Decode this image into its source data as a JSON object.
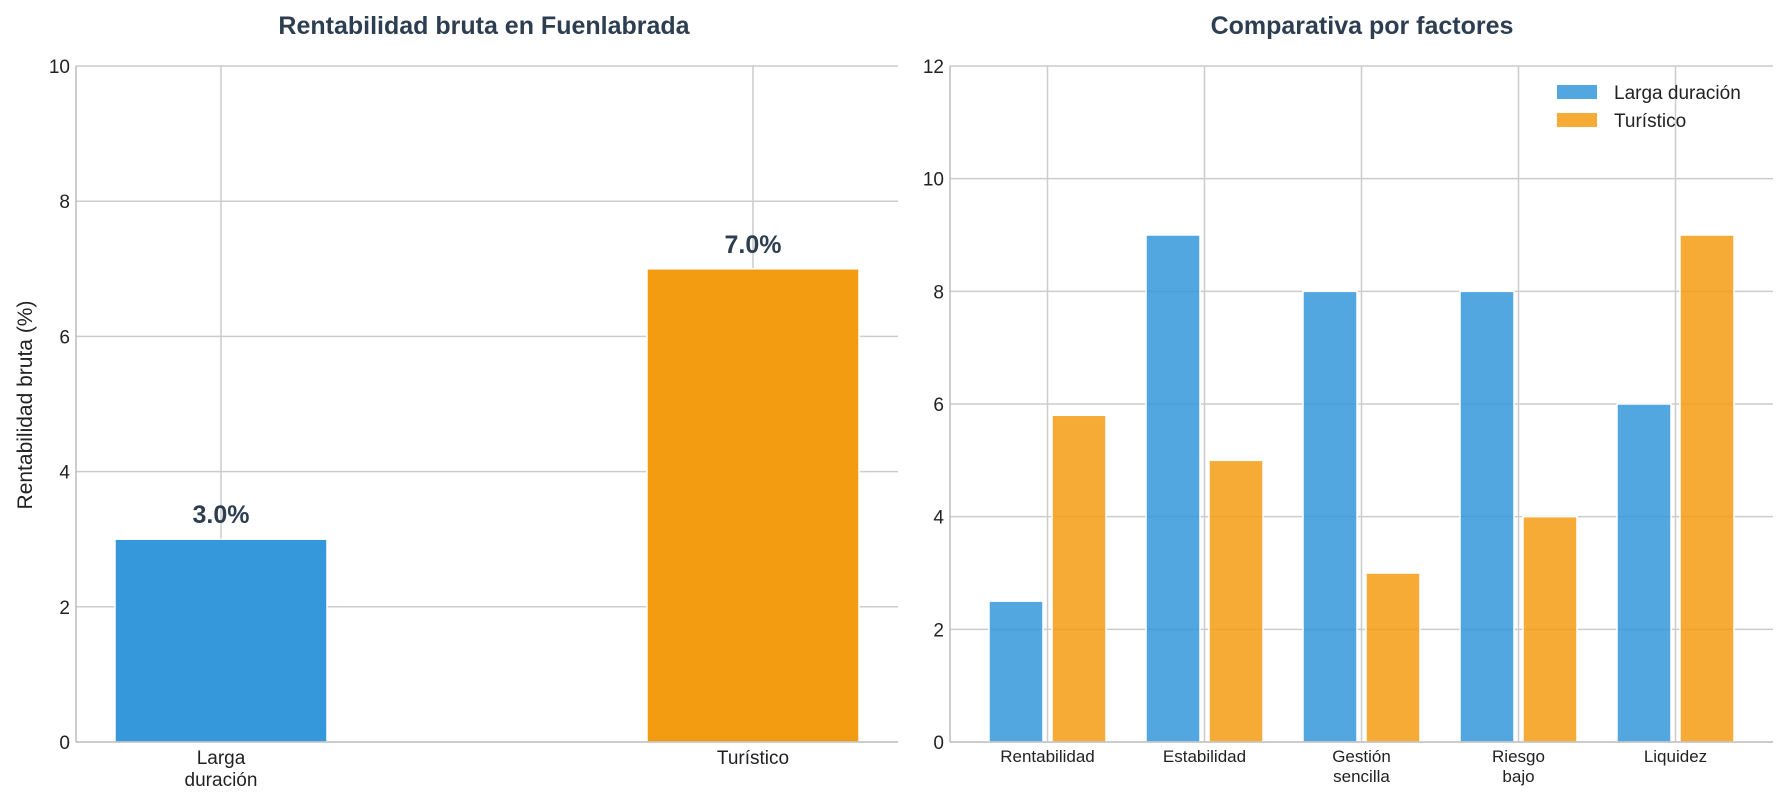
{
  "chart_data": [
    {
      "type": "bar",
      "title": "Rentabilidad bruta en Fuenlabrada",
      "xlabel": "",
      "ylabel": "Rentabilidad bruta (%)",
      "categories": [
        [
          "Larga",
          "duración"
        ],
        [
          "Turístico"
        ]
      ],
      "values": [
        3.0,
        7.0
      ],
      "value_labels": [
        "3.0%",
        "7.0%"
      ],
      "colors": [
        "#3498db",
        "#f39c12"
      ],
      "ylim": [
        0,
        10
      ],
      "yticks": [
        "0",
        "2",
        "4",
        "6",
        "8",
        "10"
      ],
      "grid": true
    },
    {
      "type": "bar",
      "title": "Comparativa por factores",
      "xlabel": "",
      "ylabel": "",
      "categories": [
        [
          "Rentabilidad"
        ],
        [
          "Estabilidad"
        ],
        [
          "Gestión",
          "sencilla"
        ],
        [
          "Riesgo",
          "bajo"
        ],
        [
          "Liquidez"
        ]
      ],
      "series": [
        {
          "name": "Larga duración",
          "color": "#3498db",
          "values": [
            2.5,
            9,
            8,
            8,
            6
          ]
        },
        {
          "name": "Turístico",
          "color": "#f39c12",
          "values": [
            5.8,
            5,
            3,
            4,
            9
          ]
        }
      ],
      "ylim": [
        0,
        12
      ],
      "yticks": [
        "0",
        "2",
        "4",
        "6",
        "8",
        "10",
        "12"
      ],
      "legend": "top-right",
      "grid": true
    }
  ]
}
